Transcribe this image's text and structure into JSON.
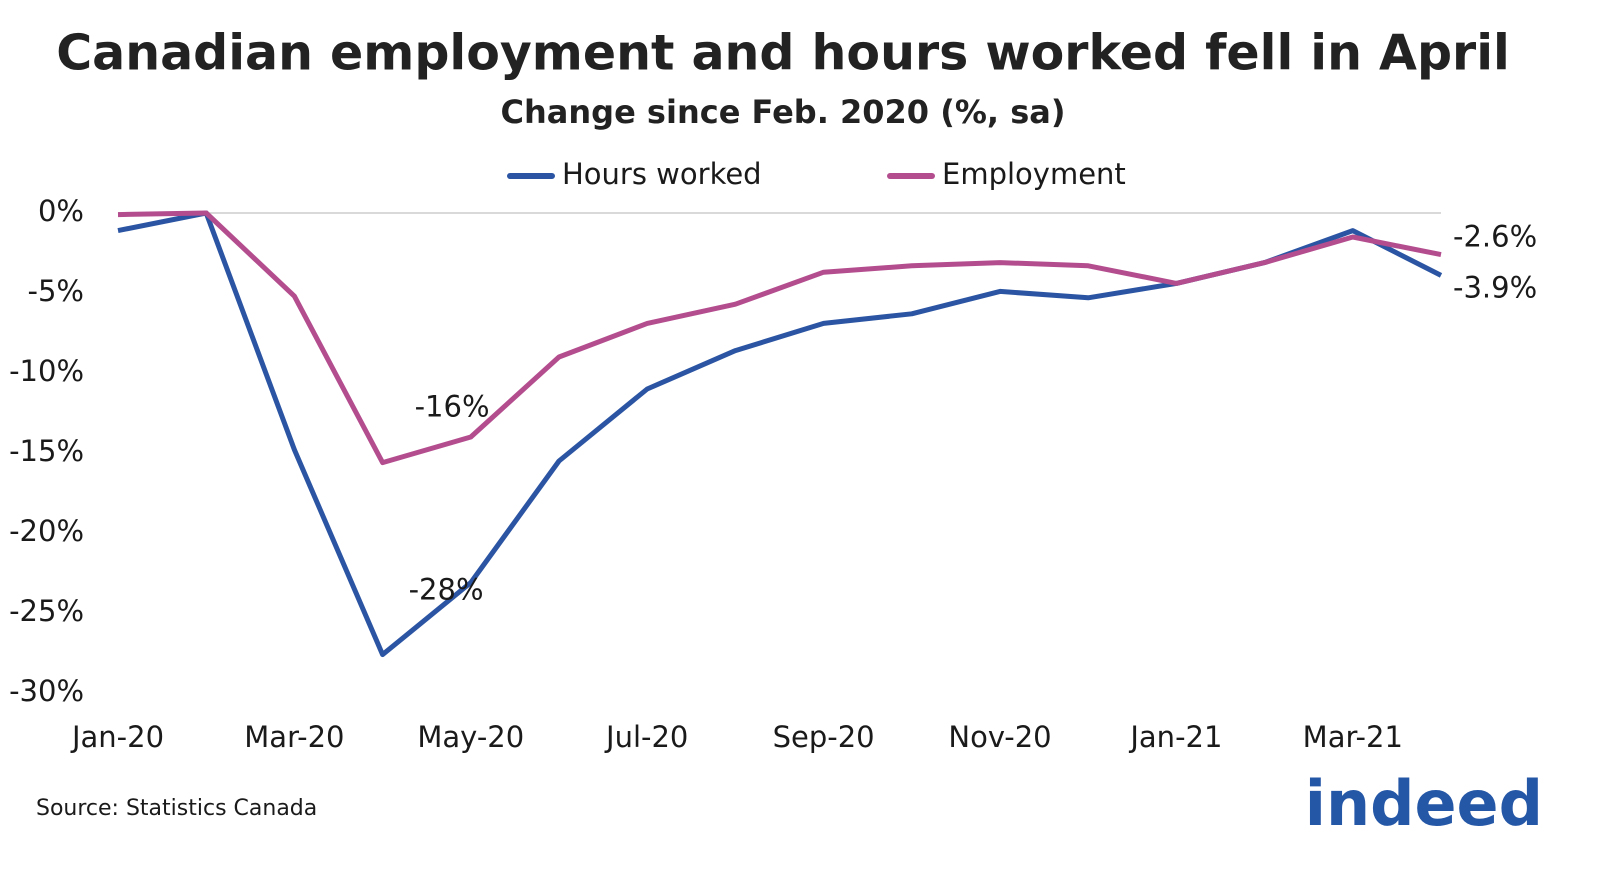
{
  "chart_data": {
    "type": "line",
    "title": "Canadian employment and hours worked fell in April",
    "subtitle": "Change since Feb. 2020 (%, sa)",
    "categories": [
      "Jan-20",
      null,
      "Mar-20",
      null,
      "May-20",
      null,
      "Jul-20",
      null,
      "Sep-20",
      null,
      "Nov-20",
      null,
      "Jan-21",
      null,
      "Mar-21",
      null
    ],
    "series": [
      {
        "name": "Hours worked",
        "color": "#2b55a3",
        "values": [
          -1.1,
          0,
          -14.8,
          -27.6,
          -23.1,
          -15.5,
          -11.0,
          -8.6,
          -6.9,
          -6.3,
          -4.9,
          -5.3,
          -4.4,
          -3.1,
          -1.1,
          -3.9
        ],
        "value_labels": [
          null,
          null,
          null,
          "-28%",
          null,
          null,
          null,
          null,
          null,
          null,
          null,
          null,
          null,
          null,
          null,
          "-3.9%"
        ]
      },
      {
        "name": "Employment",
        "color": "#b44d8e",
        "values": [
          -0.1,
          0,
          -5.2,
          -15.6,
          -14.0,
          -9.0,
          -6.9,
          -5.7,
          -3.7,
          -3.3,
          -3.1,
          -3.3,
          -4.4,
          -3.1,
          -1.5,
          -2.6
        ],
        "value_labels": [
          null,
          null,
          null,
          "-16%",
          null,
          null,
          null,
          null,
          null,
          null,
          null,
          null,
          null,
          null,
          null,
          "-2.6%"
        ]
      }
    ],
    "ylim": [
      -30,
      0
    ],
    "yticks": [
      {
        "value": 0,
        "label": "0%"
      },
      {
        "value": -5,
        "label": "-5%"
      },
      {
        "value": -10,
        "label": "-10%"
      },
      {
        "value": -15,
        "label": "-15%"
      },
      {
        "value": -20,
        "label": "-20%"
      },
      {
        "value": -25,
        "label": "-25%"
      },
      {
        "value": -30,
        "label": "-30%"
      }
    ],
    "zero_line": true,
    "legend": "top",
    "source": "Source: Statistics Canada",
    "logo": "indeed"
  }
}
